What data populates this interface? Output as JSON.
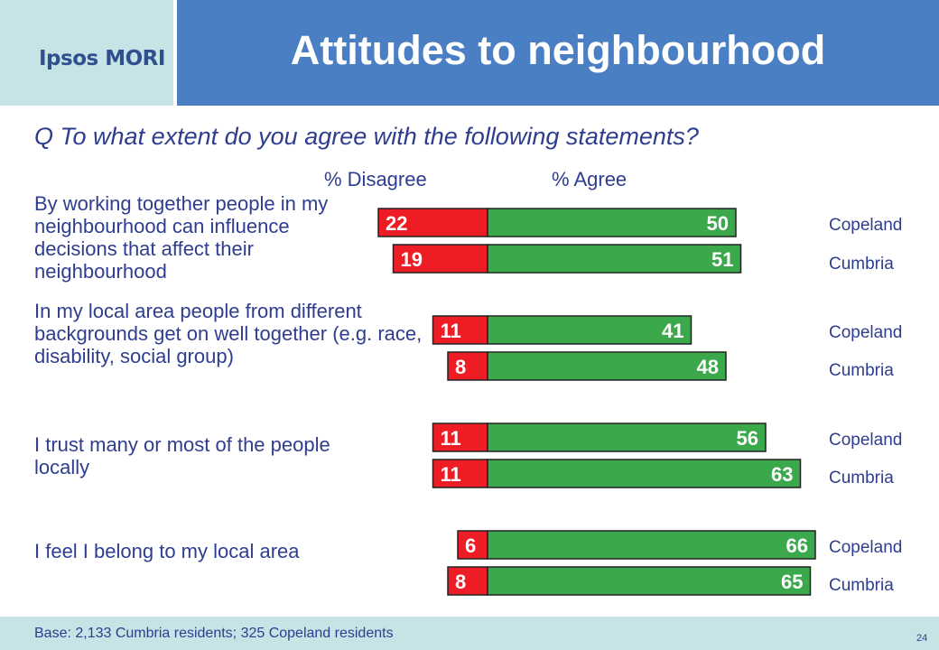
{
  "header": {
    "logo": "Ipsos MORI",
    "title": "Attitudes to neighbourhood"
  },
  "question": "Q   To what extent do you agree with the following statements?",
  "columns": {
    "disagree": "% Disagree",
    "agree": "% Agree"
  },
  "statements": [
    "By working together people in my neighbourhood can influence decisions that affect their neighbourhood",
    "In my local area people from different backgrounds get on well together (e.g. race, disability, social group)",
    "I trust many or most of the people locally",
    "I feel I belong to my local area"
  ],
  "area_labels": [
    "Copeland",
    "Cumbria"
  ],
  "colors": {
    "disagree": "#ee1c25",
    "agree": "#3aa84b",
    "text": "#2f3d8f",
    "header": "#4a7fc3",
    "logo_bg": "#c6e3e6"
  },
  "chart_data": {
    "type": "bar",
    "orientation": "horizontal-diverging",
    "categories": [
      "By working together people in my neighbourhood can influence decisions that affect their neighbourhood",
      "In my local area people from different backgrounds get on well together (e.g. race, disability, social group)",
      "I trust many or most of the people locally",
      "I feel I belong to my local area"
    ],
    "series": [
      {
        "name": "Copeland",
        "disagree": [
          22,
          11,
          11,
          6
        ],
        "agree": [
          50,
          41,
          56,
          66
        ]
      },
      {
        "name": "Cumbria",
        "disagree": [
          19,
          8,
          11,
          8
        ],
        "agree": [
          51,
          48,
          63,
          65
        ]
      }
    ],
    "xlabel_left": "% Disagree",
    "xlabel_right": "% Agree",
    "legend": "right"
  },
  "footer": {
    "base": "Base: 2,133 Cumbria residents; 325 Copeland residents",
    "page": "24"
  }
}
